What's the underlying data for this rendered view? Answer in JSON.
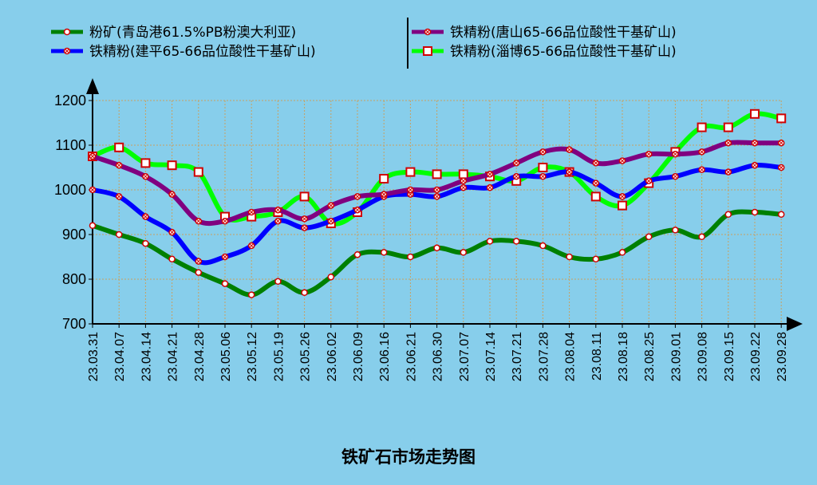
{
  "chart_data": {
    "type": "line",
    "title": "铁矿石市场走势图",
    "xlabel": "",
    "ylabel": "",
    "ylim": [
      700,
      1200
    ],
    "yticks": [
      700,
      800,
      900,
      1000,
      1100,
      1200
    ],
    "grid": true,
    "legend_position": "top",
    "categories": [
      "23.03.31",
      "23.04.07",
      "23.04.14",
      "23.04.21",
      "23.04.28",
      "23.05.06",
      "23.05.12",
      "23.05.19",
      "23.05.26",
      "23.06.02",
      "23.06.09",
      "23.06.16",
      "23.06.21",
      "23.06.30",
      "23.07.07",
      "23.07.14",
      "23.07.21",
      "23.07.28",
      "23.08.04",
      "23.08.11",
      "23.08.18",
      "23.08.25",
      "23.09.01",
      "23.09.08",
      "23.09.15",
      "23.09.22",
      "23.09.28"
    ],
    "series": [
      {
        "name": "粉矿(青岛港61.5%PB粉澳大利亚)",
        "color": "#008000",
        "marker": "circle",
        "values": [
          920,
          900,
          880,
          845,
          815,
          790,
          765,
          795,
          770,
          805,
          855,
          860,
          850,
          870,
          860,
          885,
          885,
          875,
          850,
          845,
          860,
          895,
          910,
          895,
          945,
          950,
          945
        ]
      },
      {
        "name": "铁精粉(唐山65-66品位酸性干基矿山)",
        "color": "#800080",
        "marker": "star",
        "values": [
          1075,
          1055,
          1030,
          990,
          930,
          930,
          950,
          955,
          935,
          965,
          985,
          990,
          1000,
          1000,
          1020,
          1035,
          1060,
          1085,
          1090,
          1060,
          1065,
          1080,
          1080,
          1085,
          1105,
          1105,
          1105
        ]
      },
      {
        "name": "铁精粉(建平65-66品位酸性干基矿山)",
        "color": "#0000ff",
        "marker": "x",
        "values": [
          1000,
          985,
          940,
          905,
          840,
          850,
          875,
          930,
          915,
          930,
          955,
          985,
          990,
          985,
          1005,
          1005,
          1030,
          1030,
          1040,
          1015,
          985,
          1020,
          1030,
          1045,
          1040,
          1055,
          1050
        ]
      },
      {
        "name": "铁精粉(淄博65-66品位酸性干基矿山)",
        "color": "#00ff00",
        "marker": "square",
        "values": [
          1075,
          1095,
          1060,
          1055,
          1040,
          940,
          940,
          950,
          985,
          925,
          950,
          1025,
          1040,
          1035,
          1035,
          1030,
          1020,
          1050,
          1040,
          985,
          965,
          1015,
          1085,
          1140,
          1140,
          1170,
          1160
        ]
      }
    ]
  }
}
